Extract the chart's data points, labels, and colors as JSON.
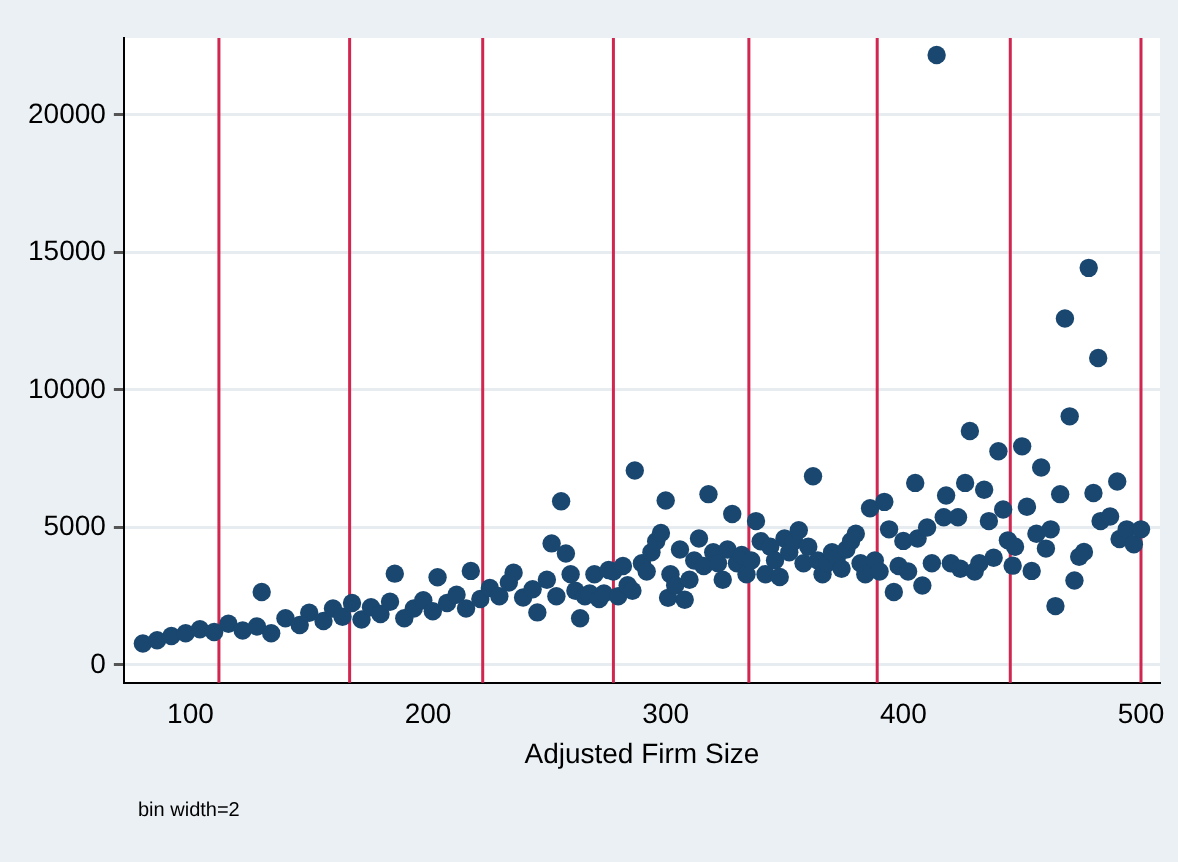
{
  "chart_data": {
    "type": "scatter",
    "xlabel": "Adjusted Firm Size",
    "annotations": [
      "bin width=2"
    ],
    "marker": "circle",
    "grid": "y",
    "xlim": [
      72,
      508
    ],
    "ylim": [
      -650,
      22800
    ],
    "xticks": [
      100,
      200,
      300,
      400,
      500
    ],
    "yticks": [
      0,
      5000,
      10000,
      15000,
      20000
    ],
    "ref_lines": [
      {
        "axis": "x",
        "value": 112,
        "color": "#d0264f"
      },
      {
        "axis": "x",
        "value": 167,
        "color": "#d0264f"
      },
      {
        "axis": "x",
        "value": 223,
        "color": "#d0264f"
      },
      {
        "axis": "x",
        "value": 278,
        "color": "#d0264f"
      },
      {
        "axis": "x",
        "value": 335,
        "color": "#d0264f"
      },
      {
        "axis": "x",
        "value": 389,
        "color": "#d0264f"
      },
      {
        "axis": "x",
        "value": 445,
        "color": "#d0264f"
      },
      {
        "axis": "x",
        "value": 500,
        "color": "#d0264f"
      }
    ],
    "series": [
      {
        "color": "#1a476f",
        "x": [
          80,
          86,
          92,
          98,
          104,
          110,
          116,
          122,
          128,
          130,
          134,
          140,
          146,
          150,
          156,
          160,
          164,
          168,
          172,
          176,
          180,
          184,
          186,
          190,
          194,
          198,
          202,
          204,
          208,
          212,
          216,
          218,
          222,
          226,
          230,
          234,
          236,
          240,
          244,
          246,
          250,
          252,
          254,
          256,
          258,
          260,
          262,
          264,
          266,
          268,
          270,
          272,
          274,
          276,
          278,
          280,
          282,
          284,
          286,
          287,
          290,
          292,
          294,
          296,
          298,
          300,
          301,
          302,
          304,
          306,
          308,
          310,
          312,
          314,
          316,
          318,
          320,
          322,
          324,
          326,
          328,
          330,
          332,
          334,
          336,
          338,
          340,
          342,
          344,
          346,
          348,
          350,
          352,
          354,
          356,
          358,
          360,
          362,
          364,
          366,
          368,
          370,
          372,
          374,
          376,
          378,
          380,
          382,
          384,
          386,
          388,
          390,
          392,
          394,
          396,
          398,
          400,
          402,
          405,
          406,
          408,
          410,
          412,
          414,
          417,
          418,
          420,
          423,
          424,
          426,
          428,
          430,
          432,
          434,
          436,
          438,
          440,
          442,
          444,
          446,
          447,
          450,
          452,
          454,
          456,
          458,
          460,
          462,
          464,
          466,
          468,
          470,
          472,
          474,
          476,
          478,
          480,
          482,
          483,
          487,
          490,
          491,
          494,
          497,
          500
        ],
        "values": [
          780,
          900,
          1050,
          1150,
          1300,
          1200,
          1500,
          1250,
          1400,
          2650,
          1150,
          1700,
          1450,
          1900,
          1600,
          2050,
          1750,
          2250,
          1650,
          2100,
          1850,
          2300,
          3320,
          1700,
          2050,
          2350,
          1950,
          3190,
          2250,
          2550,
          2050,
          3420,
          2400,
          2800,
          2500,
          3000,
          3350,
          2450,
          2750,
          1910,
          3100,
          4420,
          2500,
          5950,
          4050,
          3300,
          2700,
          1700,
          2500,
          2600,
          3300,
          2400,
          2600,
          3450,
          3400,
          2500,
          3600,
          2900,
          2700,
          7070,
          3700,
          3400,
          4100,
          4500,
          4800,
          5980,
          2440,
          3300,
          2900,
          4200,
          2370,
          3100,
          3800,
          4600,
          3600,
          6210,
          4100,
          3700,
          3100,
          4200,
          5490,
          3700,
          4000,
          3300,
          3800,
          5230,
          4500,
          3300,
          4300,
          3800,
          3200,
          4600,
          4100,
          4500,
          4900,
          3700,
          4300,
          6860,
          3800,
          3300,
          3700,
          4100,
          3900,
          3500,
          4200,
          4500,
          4770,
          3700,
          3300,
          5700,
          3800,
          3400,
          5930,
          4930,
          2650,
          3600,
          4510,
          3400,
          6620,
          4600,
          2890,
          5000,
          3700,
          22180,
          5370,
          6160,
          3700,
          5370,
          3500,
          6620,
          8510,
          3400,
          3700,
          6370,
          5230,
          3900,
          7770,
          5650,
          4530,
          3610,
          4300,
          7950,
          5750,
          3420,
          4770,
          7180,
          4230,
          4930,
          2140,
          6210,
          12600,
          9040,
          3070,
          3930,
          4110,
          14440,
          6250,
          11160,
          5230,
          5400,
          6670,
          4580,
          4930,
          4390,
          4930
        ]
      }
    ]
  }
}
